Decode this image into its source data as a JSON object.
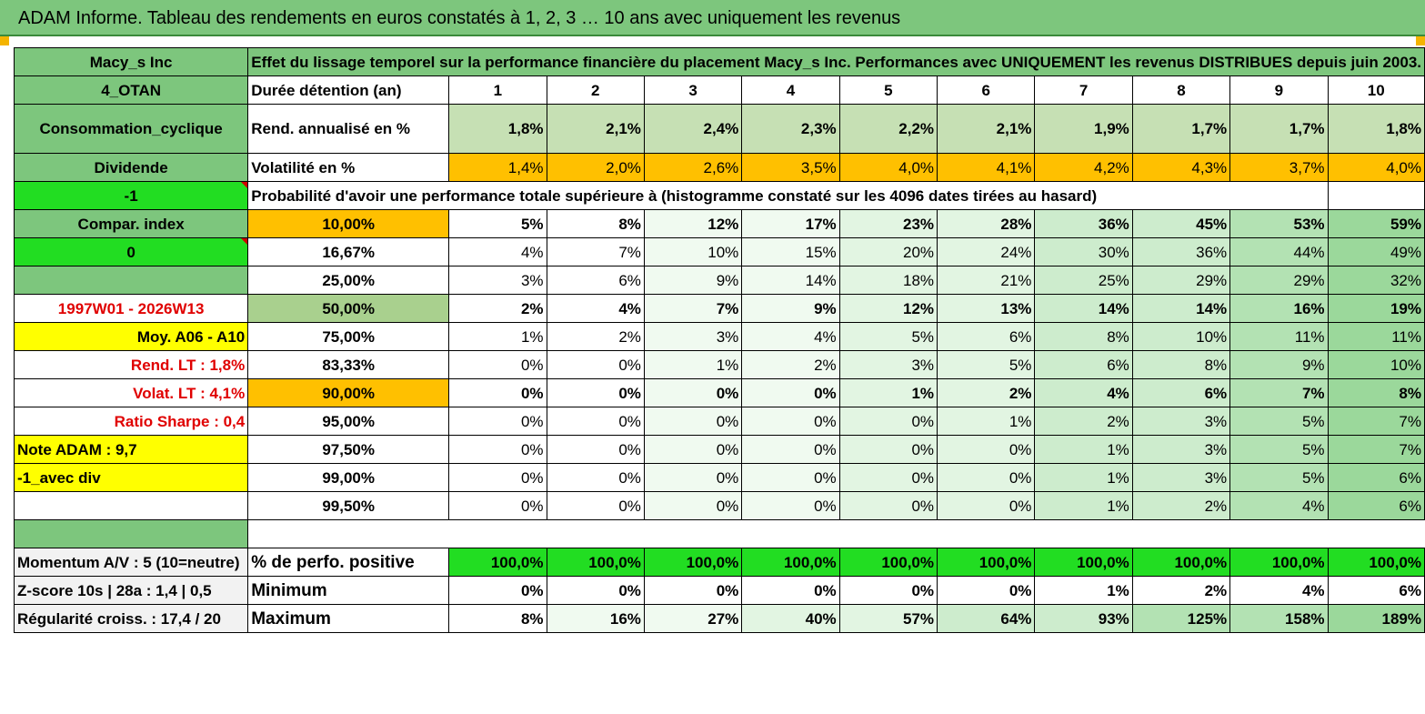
{
  "title": "ADAM Informe. Tableau des rendements en euros constatés à 1, 2, 3 … 10 ans avec uniquement les revenus",
  "header": {
    "name": "Macy_s Inc",
    "description": "Effet du lissage temporel sur la performance financière du placement Macy_s Inc. Performances avec UNIQUEMENT les revenus DISTRIBUES depuis juin 2003."
  },
  "side": {
    "code": "4_OTAN",
    "sector": "Consommation_cyclique",
    "type": "Dividende",
    "val1": "-1",
    "compar": "Compar. index",
    "val2": "0",
    "period": "1997W01 - 2026W13",
    "moy": "Moy. A06 - A10",
    "rend_lt": "Rend. LT :   1,8%",
    "volat_lt": "Volat. LT :   4,1%",
    "sharpe": "Ratio Sharpe :    0,4",
    "note": "Note ADAM : 9,7",
    "mode": "-1_avec div",
    "momentum": "Momentum A/V : 5 (10=neutre)",
    "zscore": "Z-score 10s | 28a : 1,4 | 0,5",
    "regularite": "Régularité croiss. : 17,4 / 20"
  },
  "labels": {
    "duree": "Durée détention (an)",
    "rend": "Rend. annualisé en %",
    "volat": "Volatilité en %",
    "prob": "Probabilité d'avoir une performance totale supérieure à (histogramme constaté sur les 4096 dates tirées au hasard)",
    "positive": "% de perfo. positive",
    "minimum": "Minimum",
    "maximum": "Maximum"
  },
  "years": [
    "1",
    "2",
    "3",
    "4",
    "5",
    "6",
    "7",
    "8",
    "9",
    "10"
  ],
  "rend": [
    "1,8%",
    "2,1%",
    "2,4%",
    "2,3%",
    "2,2%",
    "2,1%",
    "1,9%",
    "1,7%",
    "1,7%",
    "1,8%"
  ],
  "volat": [
    "1,4%",
    "2,0%",
    "2,6%",
    "3,5%",
    "4,0%",
    "4,1%",
    "4,2%",
    "4,3%",
    "3,7%",
    "4,0%"
  ],
  "prob_rows": [
    {
      "threshold": "10,00%",
      "values": [
        "5%",
        "8%",
        "12%",
        "17%",
        "23%",
        "28%",
        "36%",
        "45%",
        "53%",
        "59%"
      ]
    },
    {
      "threshold": "16,67%",
      "values": [
        "4%",
        "7%",
        "10%",
        "15%",
        "20%",
        "24%",
        "30%",
        "36%",
        "44%",
        "49%"
      ]
    },
    {
      "threshold": "25,00%",
      "values": [
        "3%",
        "6%",
        "9%",
        "14%",
        "18%",
        "21%",
        "25%",
        "29%",
        "29%",
        "32%"
      ]
    },
    {
      "threshold": "50,00%",
      "values": [
        "2%",
        "4%",
        "7%",
        "9%",
        "12%",
        "13%",
        "14%",
        "14%",
        "16%",
        "19%"
      ]
    },
    {
      "threshold": "75,00%",
      "values": [
        "1%",
        "2%",
        "3%",
        "4%",
        "5%",
        "6%",
        "8%",
        "10%",
        "11%",
        "11%"
      ]
    },
    {
      "threshold": "83,33%",
      "values": [
        "0%",
        "0%",
        "1%",
        "2%",
        "3%",
        "5%",
        "6%",
        "8%",
        "9%",
        "10%"
      ]
    },
    {
      "threshold": "90,00%",
      "values": [
        "0%",
        "0%",
        "0%",
        "0%",
        "1%",
        "2%",
        "4%",
        "6%",
        "7%",
        "8%"
      ]
    },
    {
      "threshold": "95,00%",
      "values": [
        "0%",
        "0%",
        "0%",
        "0%",
        "0%",
        "1%",
        "2%",
        "3%",
        "5%",
        "7%"
      ]
    },
    {
      "threshold": "97,50%",
      "values": [
        "0%",
        "0%",
        "0%",
        "0%",
        "0%",
        "0%",
        "1%",
        "3%",
        "5%",
        "7%"
      ]
    },
    {
      "threshold": "99,00%",
      "values": [
        "0%",
        "0%",
        "0%",
        "0%",
        "0%",
        "0%",
        "1%",
        "3%",
        "5%",
        "6%"
      ]
    },
    {
      "threshold": "99,50%",
      "values": [
        "0%",
        "0%",
        "0%",
        "0%",
        "0%",
        "0%",
        "1%",
        "2%",
        "4%",
        "6%"
      ]
    }
  ],
  "positive": [
    "100,0%",
    "100,0%",
    "100,0%",
    "100,0%",
    "100,0%",
    "100,0%",
    "100,0%",
    "100,0%",
    "100,0%",
    "100,0%"
  ],
  "minimum": [
    "0%",
    "0%",
    "0%",
    "0%",
    "0%",
    "0%",
    "1%",
    "2%",
    "4%",
    "6%"
  ],
  "maximum": [
    "8%",
    "16%",
    "27%",
    "40%",
    "57%",
    "64%",
    "93%",
    "125%",
    "158%",
    "189%"
  ],
  "colors": {
    "header_green": "#7dc67d",
    "bright_green": "#22dd22",
    "orange": "#ffc000",
    "light_green": "#c6e0b4",
    "yellow": "#ffff00",
    "red_text": "#e00000"
  }
}
